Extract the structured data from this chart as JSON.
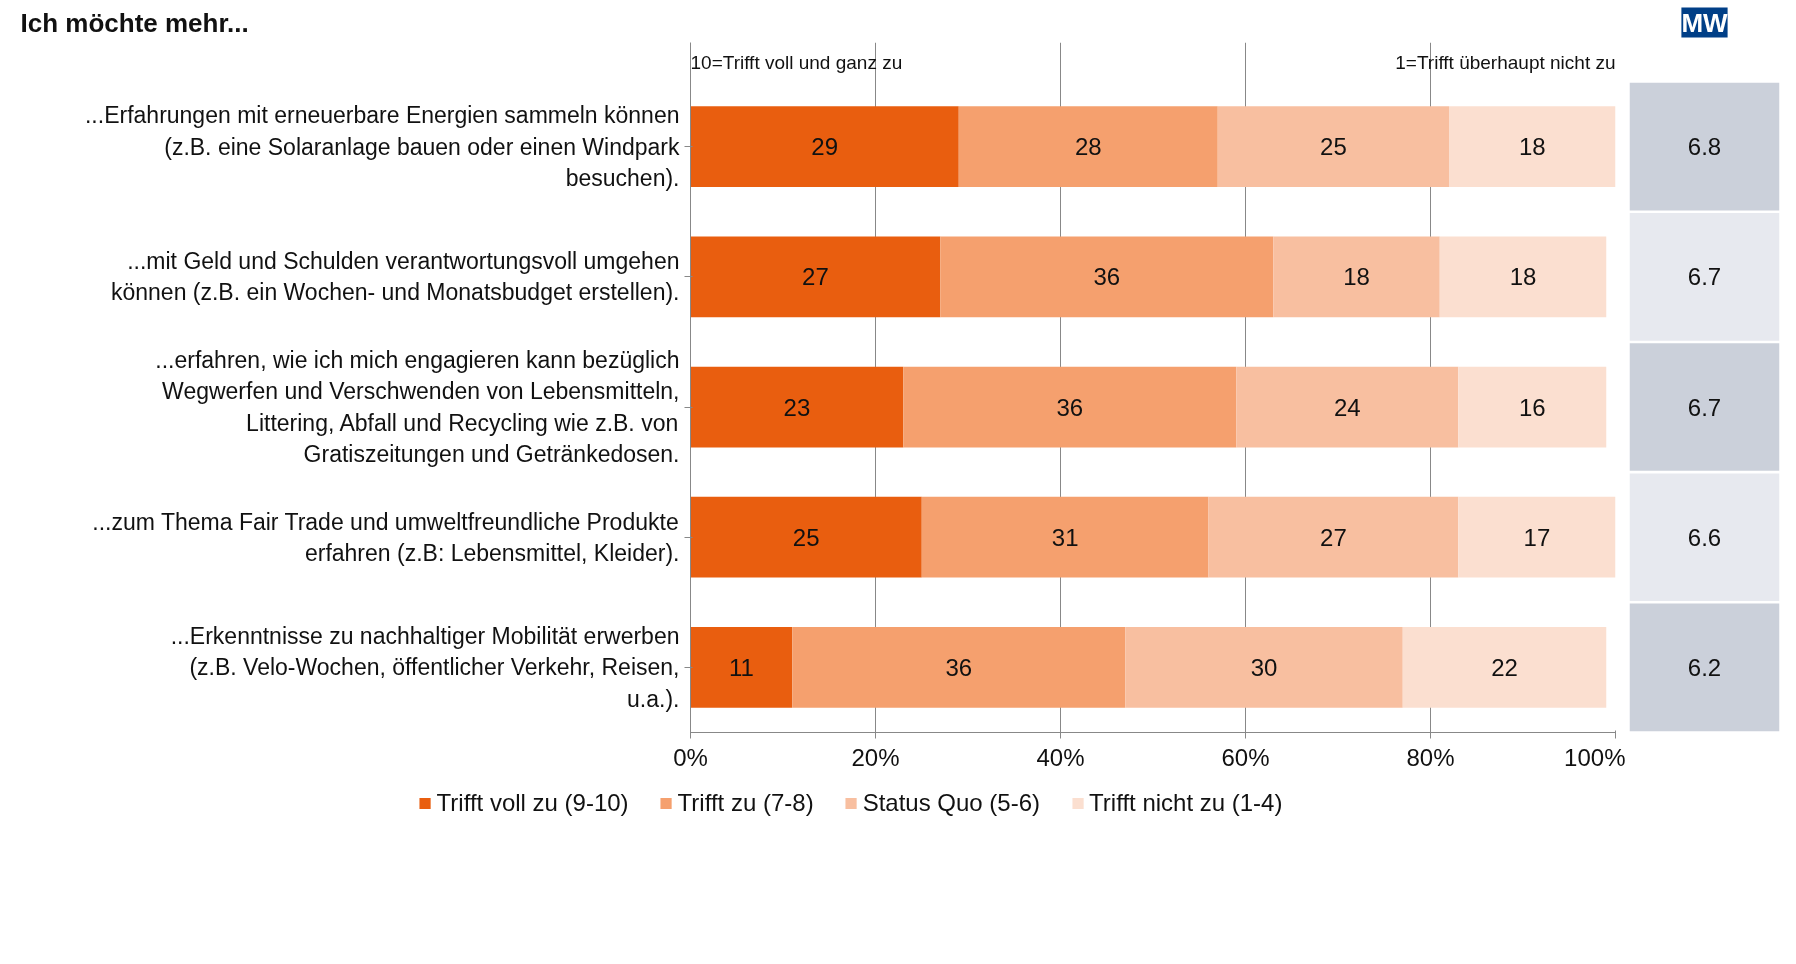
{
  "chart_data": {
    "type": "bar",
    "orientation": "horizontal",
    "stacked": true,
    "title": "Ich möchte mehr...",
    "categories": [
      "...Erfahrungen mit erneuerbare Energien sammeln können (z.B. eine Solaranlage bauen oder einen Windpark besuchen).",
      "...mit Geld und Schulden verantwortungsvoll umgehen können (z.B. ein Wochen- und Monatsbudget erstellen).",
      "...erfahren, wie ich mich engagieren kann bezüglich Wegwerfen und Verschwenden von Lebensmitteln, Littering, Abfall und Recycling wie z.B. von Gratiszeitungen und Getränkedosen.",
      "...zum Thema Fair Trade und umweltfreundliche Produkte erfahren (z.B: Lebensmittel, Kleider).",
      "...Erkenntnisse zu nachhaltiger Mobilität erwerben (z.B. Velo-Wochen, öffentlicher Verkehr, Reisen, u.a.)."
    ],
    "series": [
      {
        "name": "Trifft voll zu (9-10)",
        "color": "#e95e0f",
        "values": [
          29,
          27,
          23,
          25,
          11
        ]
      },
      {
        "name": "Trifft zu (7-8)",
        "color": "#f5a06e",
        "values": [
          28,
          36,
          36,
          31,
          36
        ]
      },
      {
        "name": "Status Quo (5-6)",
        "color": "#f8bfa0",
        "values": [
          25,
          18,
          24,
          27,
          30
        ]
      },
      {
        "name": "Trifft nicht zu (1-4)",
        "color": "#fbdfd0",
        "values": [
          18,
          18,
          16,
          17,
          22
        ]
      }
    ],
    "xlim": [
      0,
      100
    ],
    "xticks": [
      {
        "value": 0,
        "label": "0%"
      },
      {
        "value": 20,
        "label": "20%"
      },
      {
        "value": 40,
        "label": "40%"
      },
      {
        "value": 60,
        "label": "60%"
      },
      {
        "value": 80,
        "label": "80%"
      },
      {
        "value": 100,
        "label": "100%"
      }
    ],
    "grid": "x",
    "legend": "bottom",
    "data_labels": true,
    "annotations": [
      "10=Trifft voll und ganz zu",
      "1=Trifft überhaupt nicht zu",
      "MW",
      "6.8",
      "6.7",
      "6.7",
      "6.6",
      "6.2"
    ]
  }
}
